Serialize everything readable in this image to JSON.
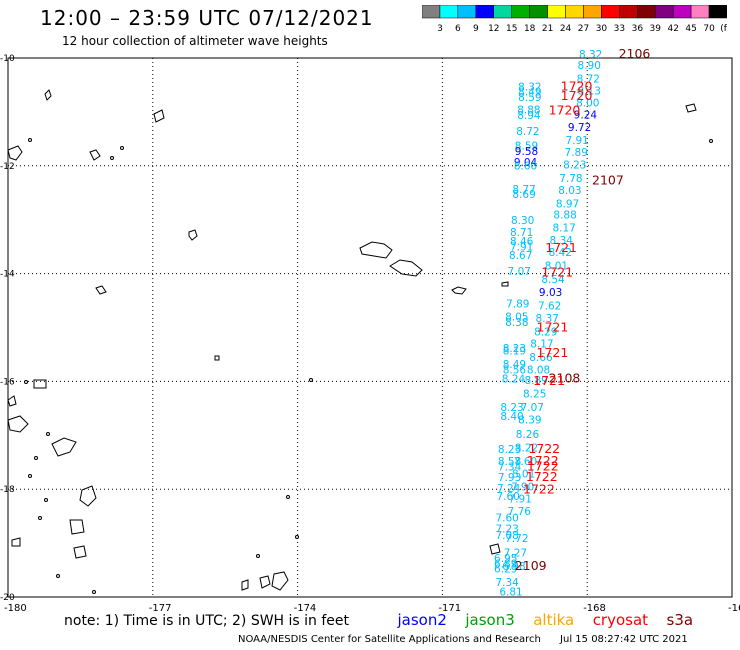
{
  "header": {
    "title": "12:00 – 23:59 UTC 07/12/2021",
    "subtitle": "12 hour collection of altimeter wave heights"
  },
  "colorbar": {
    "colors": [
      "#808080",
      "#00ffff",
      "#00bfff",
      "#0000ff",
      "#00d8a0",
      "#00b000",
      "#009000",
      "#ffff00",
      "#ffd700",
      "#ffa500",
      "#ff0000",
      "#c00000",
      "#800000",
      "#800080",
      "#c000c0",
      "#ff80c0",
      "#000000"
    ],
    "labels": [
      "3",
      "6",
      "9",
      "12",
      "15",
      "18",
      "21",
      "24",
      "27",
      "30",
      "33",
      "36",
      "39",
      "42",
      "45",
      "70",
      "(ft)"
    ]
  },
  "axes": {
    "x_ticks": [
      "-180",
      "-177",
      "-174",
      "-171",
      "-168",
      "-16"
    ],
    "y_ticks": [
      "-10",
      "-12",
      "-14",
      "-16",
      "-18",
      "-20"
    ]
  },
  "wave_points": [
    {
      "v": "8.32",
      "c": "#00bfff",
      "lon": -168.17,
      "lat": -10.0
    },
    {
      "v": "8.90",
      "c": "#00bfff",
      "lon": -168.2,
      "lat": -10.2
    },
    {
      "v": "8.72",
      "c": "#00bfff",
      "lon": -168.22,
      "lat": -10.45
    },
    {
      "v": "8.13",
      "c": "#00bfff",
      "lon": -168.2,
      "lat": -10.68
    },
    {
      "v": "8.00",
      "c": "#00bfff",
      "lon": -168.23,
      "lat": -10.9
    },
    {
      "v": "9.24",
      "c": "#0000ff",
      "lon": -168.28,
      "lat": -11.12
    },
    {
      "v": "9.72",
      "c": "#0000ff",
      "lon": -168.4,
      "lat": -11.35
    },
    {
      "v": "7.91",
      "c": "#00bfff",
      "lon": -168.45,
      "lat": -11.6
    },
    {
      "v": "7.89",
      "c": "#00bfff",
      "lon": -168.47,
      "lat": -11.82
    },
    {
      "v": "8.23",
      "c": "#00bfff",
      "lon": -168.5,
      "lat": -12.05
    },
    {
      "v": "7.78",
      "c": "#00bfff",
      "lon": -168.58,
      "lat": -12.3
    },
    {
      "v": "8.03",
      "c": "#00bfff",
      "lon": -168.6,
      "lat": -12.52
    },
    {
      "v": "8.97",
      "c": "#00bfff",
      "lon": -168.65,
      "lat": -12.77
    },
    {
      "v": "8.88",
      "c": "#00bfff",
      "lon": -168.7,
      "lat": -12.98
    },
    {
      "v": "8.17",
      "c": "#00bfff",
      "lon": -168.72,
      "lat": -13.22
    },
    {
      "v": "8.34",
      "c": "#00bfff",
      "lon": -168.78,
      "lat": -13.45
    },
    {
      "v": "8.42",
      "c": "#00bfff",
      "lon": -168.8,
      "lat": -13.67
    },
    {
      "v": "8.01",
      "c": "#00bfff",
      "lon": -168.88,
      "lat": -13.92
    },
    {
      "v": "8.54",
      "c": "#00bfff",
      "lon": -168.95,
      "lat": -14.17
    },
    {
      "v": "9.03",
      "c": "#0000ff",
      "lon": -169.0,
      "lat": -14.42
    },
    {
      "v": "7.62",
      "c": "#00bfff",
      "lon": -169.02,
      "lat": -14.67
    },
    {
      "v": "8.37",
      "c": "#00bfff",
      "lon": -169.07,
      "lat": -14.9
    },
    {
      "v": "8.29",
      "c": "#00bfff",
      "lon": -169.1,
      "lat": -15.15
    },
    {
      "v": "8.17",
      "c": "#00bfff",
      "lon": -169.18,
      "lat": -15.37
    },
    {
      "v": "8.66",
      "c": "#00bfff",
      "lon": -169.2,
      "lat": -15.62
    },
    {
      "v": "8.08",
      "c": "#00bfff",
      "lon": -169.25,
      "lat": -15.85
    },
    {
      "v": "8.89",
      "c": "#00bfff",
      "lon": -169.3,
      "lat": -16.05
    },
    {
      "v": "8.25",
      "c": "#00bfff",
      "lon": -169.33,
      "lat": -16.3
    },
    {
      "v": "7.07",
      "c": "#00bfff",
      "lon": -169.38,
      "lat": -16.55
    },
    {
      "v": "8.39",
      "c": "#00bfff",
      "lon": -169.43,
      "lat": -16.78
    },
    {
      "v": "8.26",
      "c": "#00bfff",
      "lon": -169.48,
      "lat": -17.05
    },
    {
      "v": "8.22",
      "c": "#00bfff",
      "lon": -169.5,
      "lat": -17.3
    },
    {
      "v": "7.60",
      "c": "#00bfff",
      "lon": -169.52,
      "lat": -17.55
    },
    {
      "v": "8.01",
      "c": "#00bfff",
      "lon": -169.56,
      "lat": -17.78
    },
    {
      "v": "7.90",
      "c": "#00bfff",
      "lon": -169.58,
      "lat": -18.02
    },
    {
      "v": "7.91",
      "c": "#00bfff",
      "lon": -169.63,
      "lat": -18.25
    },
    {
      "v": "7.76",
      "c": "#00bfff",
      "lon": -169.65,
      "lat": -18.48
    },
    {
      "v": "7.72",
      "c": "#00bfff",
      "lon": -169.7,
      "lat": -18.98
    },
    {
      "v": "7.27",
      "c": "#00bfff",
      "lon": -169.73,
      "lat": -19.25
    },
    {
      "v": "6.98",
      "c": "#00bfff",
      "lon": -169.76,
      "lat": -19.5
    },
    {
      "v": "6.81",
      "c": "#00bfff",
      "lon": -169.82,
      "lat": -19.97
    },
    {
      "v": "8.32",
      "c": "#00bfff",
      "lon": -169.43,
      "lat": -10.6
    },
    {
      "v": "8.49",
      "c": "#00bfff",
      "lon": -169.43,
      "lat": -10.7
    },
    {
      "v": "8.59",
      "c": "#00bfff",
      "lon": -169.43,
      "lat": -10.8
    },
    {
      "v": "8.88",
      "c": "#00bfff",
      "lon": -169.45,
      "lat": -11.03
    },
    {
      "v": "8.94",
      "c": "#00bfff",
      "lon": -169.45,
      "lat": -11.13
    },
    {
      "v": "8.72",
      "c": "#00bfff",
      "lon": -169.47,
      "lat": -11.43
    },
    {
      "v": "8.59",
      "c": "#00bfff",
      "lon": -169.5,
      "lat": -11.7
    },
    {
      "v": "9.58",
      "c": "#0000ff",
      "lon": -169.5,
      "lat": -11.8
    },
    {
      "v": "9.04",
      "c": "#0000ff",
      "lon": -169.52,
      "lat": -12.0
    },
    {
      "v": "8.60",
      "c": "#00bfff",
      "lon": -169.52,
      "lat": -12.07
    },
    {
      "v": "8.77",
      "c": "#00bfff",
      "lon": -169.55,
      "lat": -12.5
    },
    {
      "v": "8.69",
      "c": "#00bfff",
      "lon": -169.55,
      "lat": -12.6
    },
    {
      "v": "8.30",
      "c": "#00bfff",
      "lon": -169.58,
      "lat": -13.08
    },
    {
      "v": "8.71",
      "c": "#00bfff",
      "lon": -169.6,
      "lat": -13.3
    },
    {
      "v": "8.46",
      "c": "#00bfff",
      "lon": -169.6,
      "lat": -13.47
    },
    {
      "v": "7.91",
      "c": "#00bfff",
      "lon": -169.6,
      "lat": -13.57
    },
    {
      "v": "8.67",
      "c": "#00bfff",
      "lon": -169.62,
      "lat": -13.73
    },
    {
      "v": "7.07",
      "c": "#00bfff",
      "lon": -169.65,
      "lat": -14.03
    },
    {
      "v": "7.89",
      "c": "#00bfff",
      "lon": -169.68,
      "lat": -14.63
    },
    {
      "v": "8.05",
      "c": "#00bfff",
      "lon": -169.7,
      "lat": -14.87
    },
    {
      "v": "8.38",
      "c": "#00bfff",
      "lon": -169.7,
      "lat": -14.97
    },
    {
      "v": "8.23",
      "c": "#00bfff",
      "lon": -169.75,
      "lat": -15.45
    },
    {
      "v": "8.19",
      "c": "#00bfff",
      "lon": -169.75,
      "lat": -15.5
    },
    {
      "v": "8.49",
      "c": "#00bfff",
      "lon": -169.75,
      "lat": -15.75
    },
    {
      "v": "8.56",
      "c": "#00bfff",
      "lon": -169.75,
      "lat": -15.85
    },
    {
      "v": "8.24",
      "c": "#00bfff",
      "lon": -169.77,
      "lat": -16.02
    },
    {
      "v": "8.23",
      "c": "#00bfff",
      "lon": -169.8,
      "lat": -16.55
    },
    {
      "v": "8.40",
      "c": "#00bfff",
      "lon": -169.8,
      "lat": -16.72
    },
    {
      "v": "8.23",
      "c": "#00bfff",
      "lon": -169.85,
      "lat": -17.33
    },
    {
      "v": "8.58",
      "c": "#00bfff",
      "lon": -169.85,
      "lat": -17.55
    },
    {
      "v": "7.34",
      "c": "#00bfff",
      "lon": -169.85,
      "lat": -17.65
    },
    {
      "v": "7.93",
      "c": "#00bfff",
      "lon": -169.85,
      "lat": -17.85
    },
    {
      "v": "7.24",
      "c": "#00bfff",
      "lon": -169.87,
      "lat": -18.05
    },
    {
      "v": "7.60",
      "c": "#00bfff",
      "lon": -169.88,
      "lat": -18.2
    },
    {
      "v": "7.60",
      "c": "#00bfff",
      "lon": -169.9,
      "lat": -18.6
    },
    {
      "v": "7.23",
      "c": "#00bfff",
      "lon": -169.9,
      "lat": -18.8
    },
    {
      "v": "7.08",
      "c": "#00bfff",
      "lon": -169.9,
      "lat": -18.92
    },
    {
      "v": "6.95",
      "c": "#00bfff",
      "lon": -169.93,
      "lat": -19.35
    },
    {
      "v": "6.89",
      "c": "#00bfff",
      "lon": -169.93,
      "lat": -19.45
    },
    {
      "v": "6.29",
      "c": "#00bfff",
      "lon": -169.93,
      "lat": -19.55
    },
    {
      "v": "7.34",
      "c": "#00bfff",
      "lon": -169.9,
      "lat": -19.8
    }
  ],
  "pass_labels": [
    {
      "t": "2106",
      "c": "#800000",
      "lon": -167.35,
      "lat": -10.0
    },
    {
      "t": "1720",
      "c": "#ff0000",
      "lon": -168.55,
      "lat": -10.6
    },
    {
      "t": "1720",
      "c": "#ff0000",
      "lon": -168.55,
      "lat": -10.78
    },
    {
      "t": "1720",
      "c": "#ff0000",
      "lon": -168.8,
      "lat": -11.05
    },
    {
      "t": "2107",
      "c": "#800000",
      "lon": -167.9,
      "lat": -12.35
    },
    {
      "t": "1721",
      "c": "#ff0000",
      "lon": -168.87,
      "lat": -13.6
    },
    {
      "t": "1721",
      "c": "#ff0000",
      "lon": -168.95,
      "lat": -14.05
    },
    {
      "t": "1721",
      "c": "#ff0000",
      "lon": -169.05,
      "lat": -15.07
    },
    {
      "t": "1721",
      "c": "#ff0000",
      "lon": -169.05,
      "lat": -15.55
    },
    {
      "t": "2108",
      "c": "#800000",
      "lon": -168.8,
      "lat": -16.02
    },
    {
      "t": "1721",
      "c": "#ff0000",
      "lon": -169.12,
      "lat": -16.07
    },
    {
      "t": "1722",
      "c": "#ff0000",
      "lon": -169.22,
      "lat": -17.33
    },
    {
      "t": "1722",
      "c": "#ff0000",
      "lon": -169.25,
      "lat": -17.55
    },
    {
      "t": "1722",
      "c": "#ff0000",
      "lon": -169.25,
      "lat": -17.65
    },
    {
      "t": "1722",
      "c": "#ff0000",
      "lon": -169.27,
      "lat": -17.85
    },
    {
      "t": "1722",
      "c": "#ff0000",
      "lon": -169.33,
      "lat": -18.08
    },
    {
      "t": "2109",
      "c": "#800000",
      "lon": -169.5,
      "lat": -19.5
    }
  ],
  "legend": {
    "note": "note: 1) Time is in UTC; 2) SWH is in feet",
    "satellites": [
      {
        "name": "jason2",
        "color": "#0000ff"
      },
      {
        "name": "jason3",
        "color": "#00a000"
      },
      {
        "name": "altika",
        "color": "#ffa500"
      },
      {
        "name": "cryosat",
        "color": "#ff0000"
      },
      {
        "name": "s3a",
        "color": "#800000"
      }
    ]
  },
  "footer": {
    "credit": "NOAA/NESDIS Center for Satellite Applications and Research",
    "timestamp": "Jul 15 08:27:42 UTC 2021"
  }
}
